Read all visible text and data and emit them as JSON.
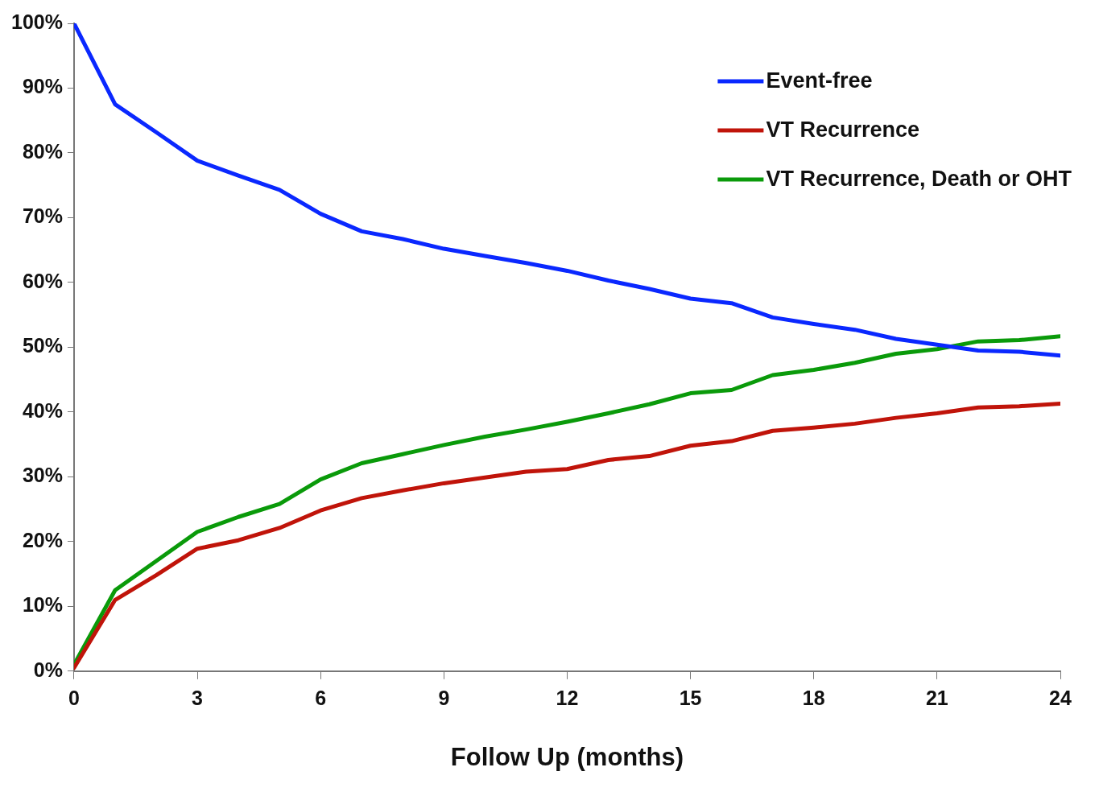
{
  "chart_data": {
    "type": "line",
    "xlabel": "Follow Up (months)",
    "x": [
      0,
      1,
      2,
      3,
      4,
      5,
      6,
      7,
      8,
      9,
      10,
      11,
      12,
      13,
      14,
      15,
      16,
      17,
      18,
      19,
      20,
      21,
      22,
      23,
      24
    ],
    "xlim": [
      0,
      24
    ],
    "xticks": [
      0,
      3,
      6,
      9,
      12,
      15,
      18,
      21,
      24
    ],
    "ylim": [
      0,
      100
    ],
    "yticks": [
      {
        "value": 0,
        "label": "0%"
      },
      {
        "value": 10,
        "label": "10%"
      },
      {
        "value": 20,
        "label": "20%"
      },
      {
        "value": 30,
        "label": "30%"
      },
      {
        "value": 40,
        "label": "40%"
      },
      {
        "value": 50,
        "label": "50%"
      },
      {
        "value": 60,
        "label": "60%"
      },
      {
        "value": 70,
        "label": "70%"
      },
      {
        "value": 80,
        "label": "80%"
      },
      {
        "value": 90,
        "label": "90%"
      },
      {
        "value": 100,
        "label": "100%"
      }
    ],
    "grid": false,
    "legend": "top right",
    "marker": "none",
    "line_style": "solid",
    "series": [
      {
        "name": "Event-free",
        "color": "#0a28ff",
        "values": [
          100,
          87.5,
          83.2,
          78.8,
          76.5,
          74.3,
          70.6,
          67.9,
          66.7,
          65.2,
          64.1,
          63.0,
          61.8,
          60.3,
          59.0,
          57.5,
          56.8,
          54.6,
          53.6,
          52.7,
          51.3,
          50.4,
          49.5,
          49.3,
          48.7
        ]
      },
      {
        "name": "VT Recurrence",
        "color": "#c0140a",
        "values": [
          0.5,
          11,
          14.8,
          18.9,
          20.2,
          22.1,
          24.8,
          26.7,
          27.9,
          29,
          29.9,
          30.8,
          31.2,
          32.6,
          33.2,
          34.8,
          35.5,
          37.1,
          37.6,
          38.2,
          39.1,
          39.8,
          40.7,
          40.9,
          41.3
        ]
      },
      {
        "name": "VT Recurrence, Death or OHT",
        "color": "#0a9a0a",
        "values": [
          1,
          12.5,
          17,
          21.5,
          23.8,
          25.8,
          29.6,
          32.1,
          33.5,
          34.9,
          36.2,
          37.3,
          38.5,
          39.8,
          41.2,
          42.9,
          43.4,
          45.7,
          46.5,
          47.6,
          49.0,
          49.7,
          50.9,
          51.1,
          51.7
        ]
      }
    ]
  }
}
